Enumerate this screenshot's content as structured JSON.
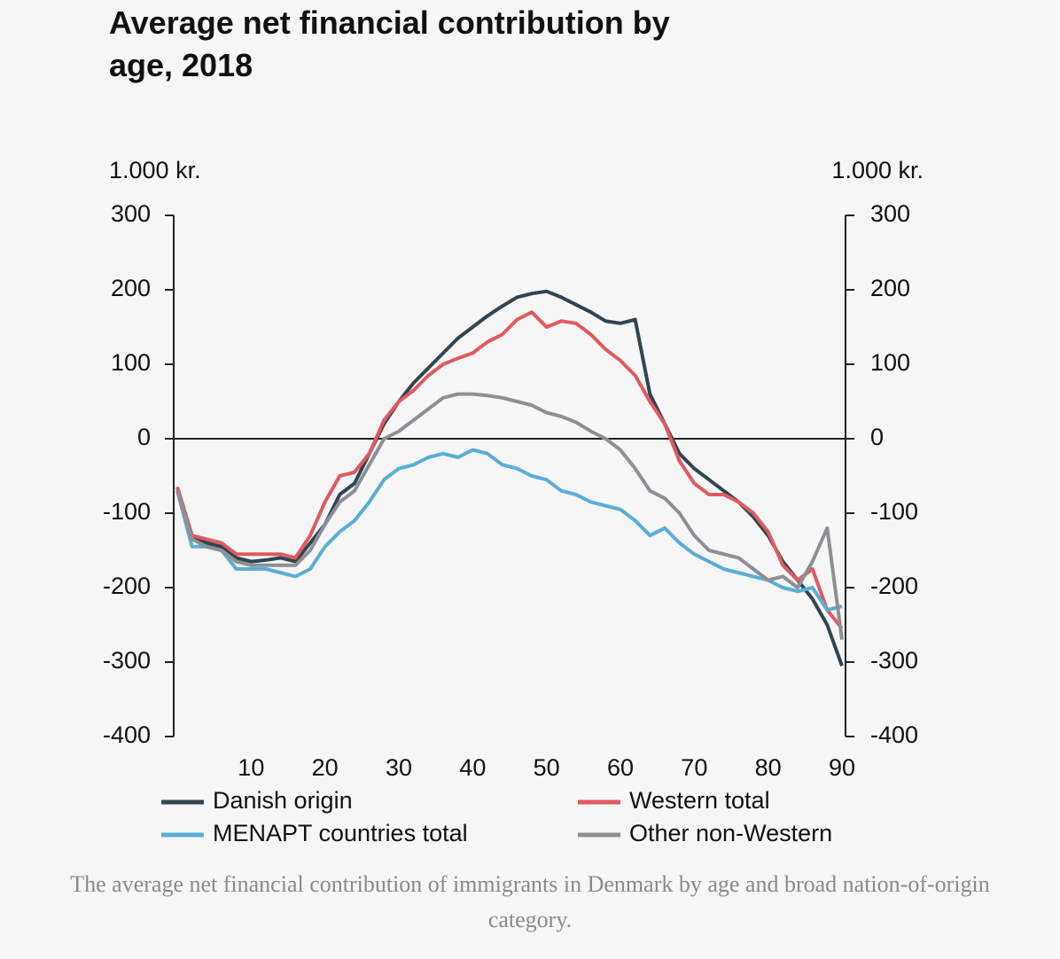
{
  "chart_data": {
    "type": "line",
    "title": "Average net financial contribution by age, 2018",
    "y_label": "1.000 kr.",
    "y2_label": "1.000 kr.",
    "x": [
      0,
      2,
      4,
      6,
      8,
      10,
      12,
      14,
      16,
      18,
      20,
      22,
      24,
      26,
      28,
      30,
      32,
      34,
      36,
      38,
      40,
      42,
      44,
      46,
      48,
      50,
      52,
      54,
      56,
      58,
      60,
      62,
      64,
      66,
      68,
      70,
      72,
      74,
      76,
      78,
      80,
      82,
      84,
      86,
      88,
      90
    ],
    "xlim": [
      0,
      90
    ],
    "xticks": [
      10,
      20,
      30,
      40,
      50,
      60,
      70,
      80,
      90
    ],
    "ylim": [
      -400,
      300
    ],
    "yticks": [
      -400,
      -300,
      -200,
      -100,
      0,
      100,
      200,
      300
    ],
    "y2lim": [
      -400,
      300
    ],
    "y2ticks": [
      -400,
      -300,
      -200,
      -100,
      0,
      100,
      200,
      300
    ],
    "series": [
      {
        "name": "Danish origin",
        "color": "#2f4551",
        "values": [
          -65,
          -130,
          -140,
          -145,
          -160,
          -165,
          -163,
          -160,
          -165,
          -140,
          -115,
          -75,
          -60,
          -20,
          20,
          50,
          75,
          95,
          115,
          135,
          150,
          165,
          178,
          190,
          195,
          198,
          190,
          180,
          170,
          158,
          155,
          160,
          60,
          20,
          -20,
          -40,
          -55,
          -70,
          -85,
          -105,
          -130,
          -165,
          -190,
          -215,
          -250,
          -305
        ]
      },
      {
        "name": "Western total",
        "color": "#e05a5f",
        "values": [
          -65,
          -130,
          -135,
          -140,
          -155,
          -155,
          -155,
          -155,
          -160,
          -130,
          -85,
          -50,
          -45,
          -20,
          25,
          50,
          65,
          85,
          100,
          108,
          115,
          130,
          140,
          160,
          170,
          150,
          158,
          155,
          140,
          120,
          105,
          85,
          50,
          20,
          -30,
          -60,
          -75,
          -75,
          -85,
          -100,
          -125,
          -170,
          -190,
          -175,
          -230,
          -255
        ]
      },
      {
        "name": "MENAPT countries total",
        "color": "#5aaed6",
        "values": [
          -70,
          -145,
          -145,
          -150,
          -175,
          -175,
          -175,
          -180,
          -185,
          -175,
          -145,
          -125,
          -110,
          -85,
          -55,
          -40,
          -35,
          -25,
          -20,
          -25,
          -15,
          -20,
          -35,
          -40,
          -50,
          -55,
          -70,
          -75,
          -85,
          -90,
          -95,
          -110,
          -130,
          -120,
          -140,
          -155,
          -165,
          -175,
          -180,
          -185,
          -190,
          -200,
          -205,
          -200,
          -230,
          -225
        ]
      },
      {
        "name": "Other non-Western",
        "color": "#8c9095",
        "values": [
          -70,
          -135,
          -145,
          -150,
          -165,
          -170,
          -170,
          -170,
          -170,
          -150,
          -115,
          -85,
          -70,
          -35,
          0,
          10,
          25,
          40,
          55,
          60,
          60,
          58,
          55,
          50,
          45,
          35,
          30,
          22,
          10,
          0,
          -15,
          -40,
          -70,
          -80,
          -100,
          -130,
          -150,
          -155,
          -160,
          -175,
          -190,
          -185,
          -200,
          -165,
          -120,
          -270
        ]
      }
    ]
  },
  "caption": "The average net financial contribution of immigrants in Denmark by age and broad nation-of-origin category."
}
